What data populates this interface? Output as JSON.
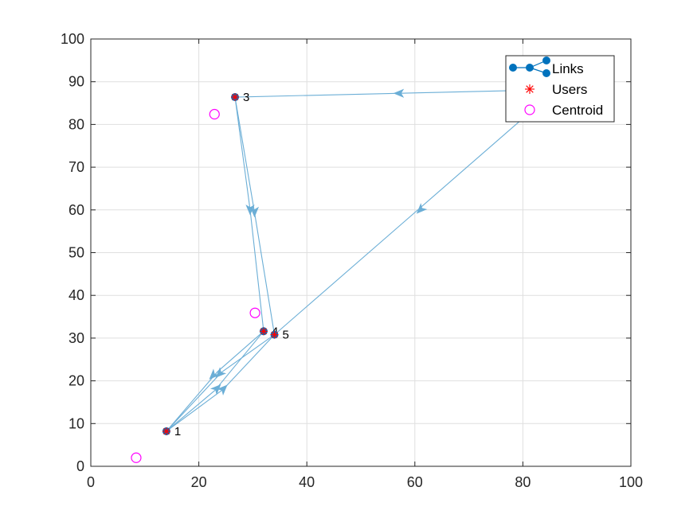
{
  "chart_data": {
    "type": "scatter",
    "title": "",
    "xlabel": "",
    "ylabel": "",
    "xlim": [
      0,
      100
    ],
    "ylim": [
      0,
      100
    ],
    "xticks": [
      0,
      20,
      40,
      60,
      80,
      100
    ],
    "yticks": [
      0,
      10,
      20,
      30,
      40,
      50,
      60,
      70,
      80,
      90,
      100
    ],
    "grid": true,
    "legend_location": "top-right",
    "legend": [
      "Links",
      "Users",
      "Centroid"
    ],
    "colors": {
      "links": "#6baed6",
      "nodes": "#0072bd",
      "users": "#ff0000",
      "centroid": "#ff00ff",
      "axis": "#262626",
      "grid": "#dfdfdf"
    },
    "nodes": [
      {
        "label": "1",
        "x": 14.0,
        "y": 8.2
      },
      {
        "label": "3",
        "x": 26.7,
        "y": 86.4
      },
      {
        "label": "4",
        "x": 32.0,
        "y": 31.6
      },
      {
        "label": "5",
        "x": 34.0,
        "y": 30.8
      }
    ],
    "series": [
      {
        "name": "Users",
        "x": [
          14.0,
          26.7,
          32.0,
          34.0
        ],
        "y": [
          8.2,
          86.4,
          31.6,
          30.8
        ]
      },
      {
        "name": "Centroid",
        "x": [
          8.4,
          22.9,
          30.4
        ],
        "y": [
          2.0,
          82.4,
          35.9
        ]
      }
    ],
    "links": [
      {
        "x": [
          26.7,
          30.3
        ],
        "y": [
          86.4,
          59.5
        ]
      },
      {
        "x": [
          26.7,
          29.5
        ],
        "y": [
          86.4,
          60.0
        ]
      },
      {
        "x": [
          30.3,
          34.0
        ],
        "y": [
          59.5,
          30.8
        ]
      },
      {
        "x": [
          29.5,
          32.0
        ],
        "y": [
          60.0,
          31.6
        ]
      },
      {
        "x": [
          81.0,
          26.7
        ],
        "y": [
          88.0,
          86.4
        ]
      },
      {
        "x": [
          81.0,
          34.0
        ],
        "y": [
          82.5,
          30.8
        ]
      },
      {
        "x": [
          32.0,
          23.5
        ],
        "y": [
          31.6,
          22.2
        ]
      },
      {
        "x": [
          23.5,
          14.0
        ],
        "y": [
          22.2,
          8.2
        ]
      },
      {
        "x": [
          34.0,
          24.2
        ],
        "y": [
          30.8,
          22.0
        ]
      },
      {
        "x": [
          24.2,
          14.0
        ],
        "y": [
          22.0,
          8.2
        ]
      },
      {
        "x": [
          14.0,
          23.0
        ],
        "y": [
          8.2,
          17.8
        ]
      },
      {
        "x": [
          23.0,
          32.0
        ],
        "y": [
          17.8,
          31.6
        ]
      },
      {
        "x": [
          14.0,
          24.5
        ],
        "y": [
          8.2,
          18.0
        ]
      },
      {
        "x": [
          24.5,
          34.0
        ],
        "y": [
          18.0,
          30.8
        ]
      }
    ],
    "link_arrows": [
      {
        "x": 57.0,
        "y": 87.3,
        "dir": "left"
      },
      {
        "x": 61.0,
        "y": 60.0,
        "dir": "down-left"
      },
      {
        "x": 29.5,
        "y": 60.0,
        "dir": "down"
      },
      {
        "x": 30.3,
        "y": 59.5,
        "dir": "down"
      },
      {
        "x": 22.6,
        "y": 21.2,
        "dir": "down-left"
      },
      {
        "x": 23.8,
        "y": 21.6,
        "dir": "down-left"
      },
      {
        "x": 23.4,
        "y": 18.3,
        "dir": "up-right"
      },
      {
        "x": 24.6,
        "y": 18.2,
        "dir": "up-right"
      }
    ]
  }
}
